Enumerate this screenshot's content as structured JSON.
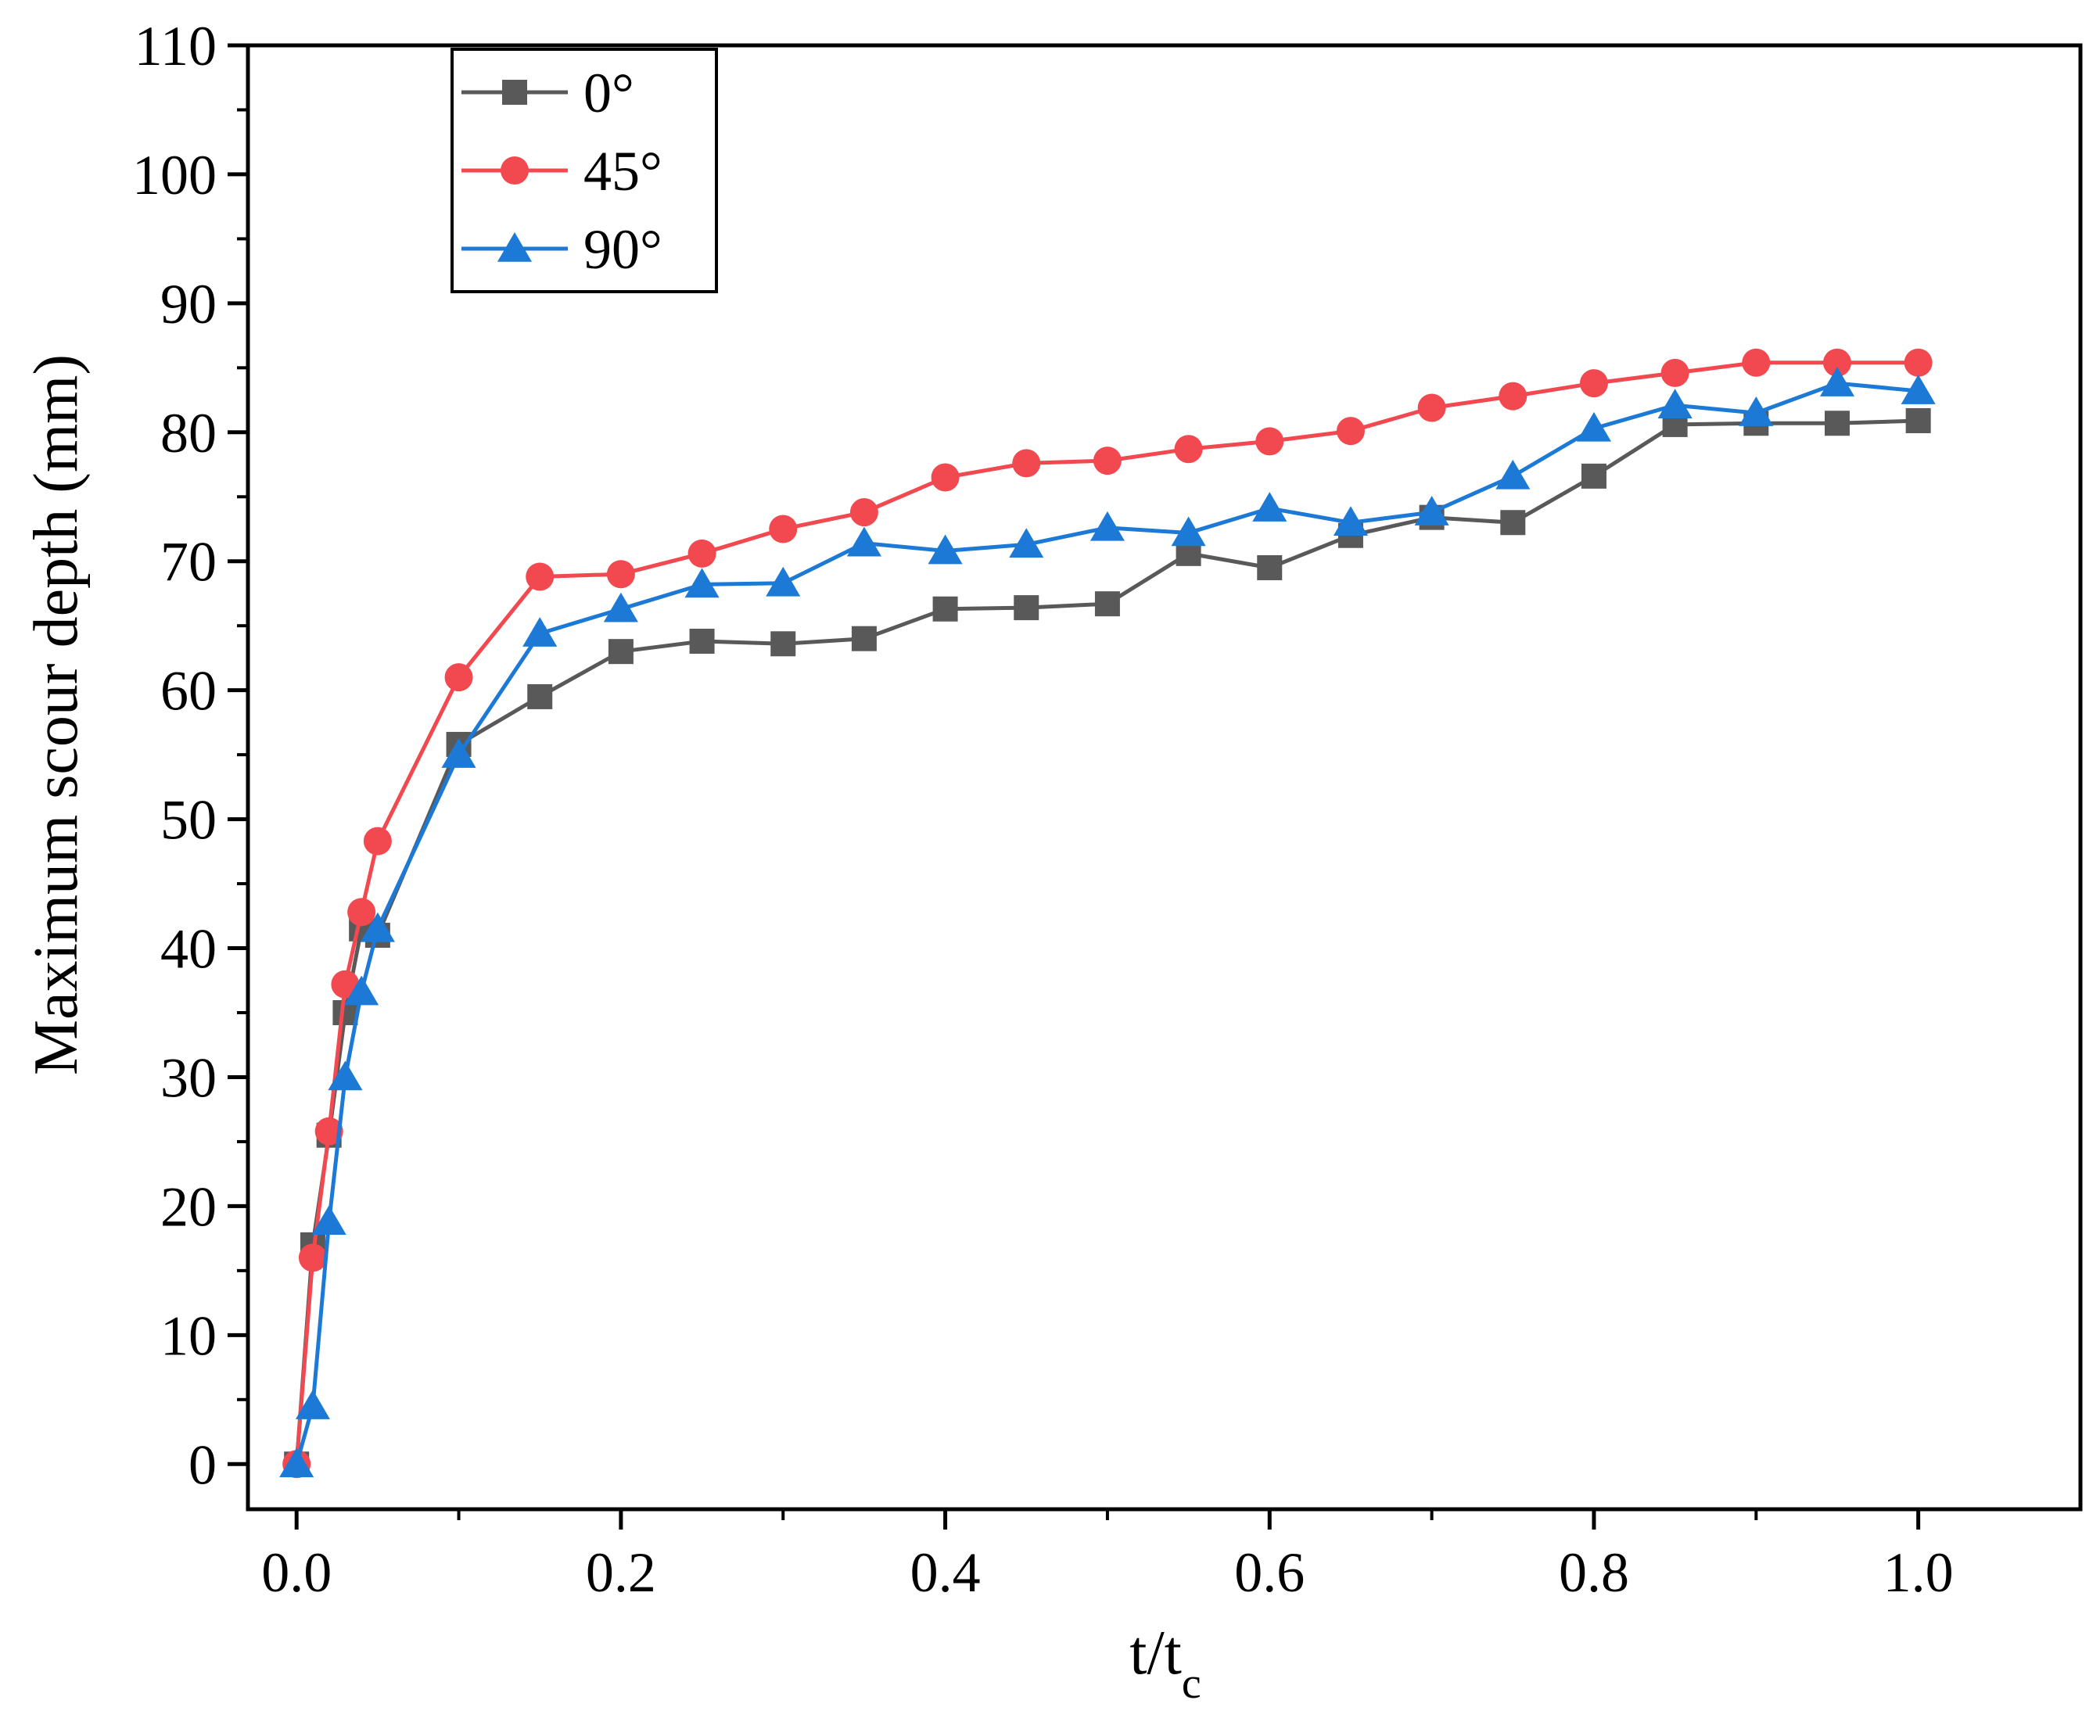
{
  "chart_data": {
    "type": "line",
    "title": "",
    "xlabel": {
      "main": "t/t",
      "sub": "c"
    },
    "ylabel": "Maximum scour depth (mm)",
    "xlim": [
      -0.03,
      1.1
    ],
    "ylim": [
      -3.5,
      110
    ],
    "x_ticks": [
      0.0,
      0.2,
      0.4,
      0.6,
      0.8,
      1.0
    ],
    "x_tick_labels": [
      "0.0",
      "0.2",
      "0.4",
      "0.6",
      "0.8",
      "1.0"
    ],
    "y_ticks": [
      0,
      10,
      20,
      30,
      40,
      50,
      60,
      70,
      80,
      90,
      100,
      110
    ],
    "y_tick_labels": [
      "0",
      "10",
      "20",
      "30",
      "40",
      "50",
      "60",
      "70",
      "80",
      "90",
      "100",
      "110"
    ],
    "legend_position": "top-left",
    "x": [
      0,
      0.01,
      0.02,
      0.03,
      0.04,
      0.05,
      0.1,
      0.15,
      0.2,
      0.25,
      0.3,
      0.35,
      0.4,
      0.45,
      0.5,
      0.55,
      0.6,
      0.65,
      0.7,
      0.75,
      0.8,
      0.85,
      0.9,
      0.95,
      1.0
    ],
    "series": [
      {
        "name": "0°",
        "color": "#595959",
        "marker": "square",
        "values": [
          0,
          17.0,
          25.5,
          35.0,
          41.5,
          41.0,
          55.8,
          59.5,
          63.0,
          63.8,
          63.6,
          64.0,
          66.3,
          66.4,
          66.7,
          70.6,
          69.5,
          72.0,
          73.4,
          73.0,
          76.6,
          80.6,
          80.7,
          80.7,
          80.9
        ]
      },
      {
        "name": "45°",
        "color": "#f2484f",
        "marker": "circle",
        "values": [
          0,
          16.0,
          25.8,
          37.2,
          42.8,
          48.3,
          61.0,
          68.8,
          69.0,
          70.6,
          72.5,
          73.8,
          76.5,
          77.6,
          77.8,
          78.7,
          79.3,
          80.1,
          81.9,
          82.8,
          83.8,
          84.6,
          85.4,
          85.4,
          85.4
        ]
      },
      {
        "name": "90°",
        "color": "#1c7ad6",
        "marker": "triangle",
        "values": [
          0,
          4.5,
          18.8,
          30.0,
          36.6,
          41.5,
          55.0,
          64.4,
          66.3,
          68.2,
          68.3,
          71.4,
          70.8,
          71.3,
          72.6,
          72.2,
          74.1,
          73.0,
          73.8,
          76.6,
          80.3,
          82.1,
          81.5,
          83.8,
          83.2
        ]
      }
    ]
  }
}
